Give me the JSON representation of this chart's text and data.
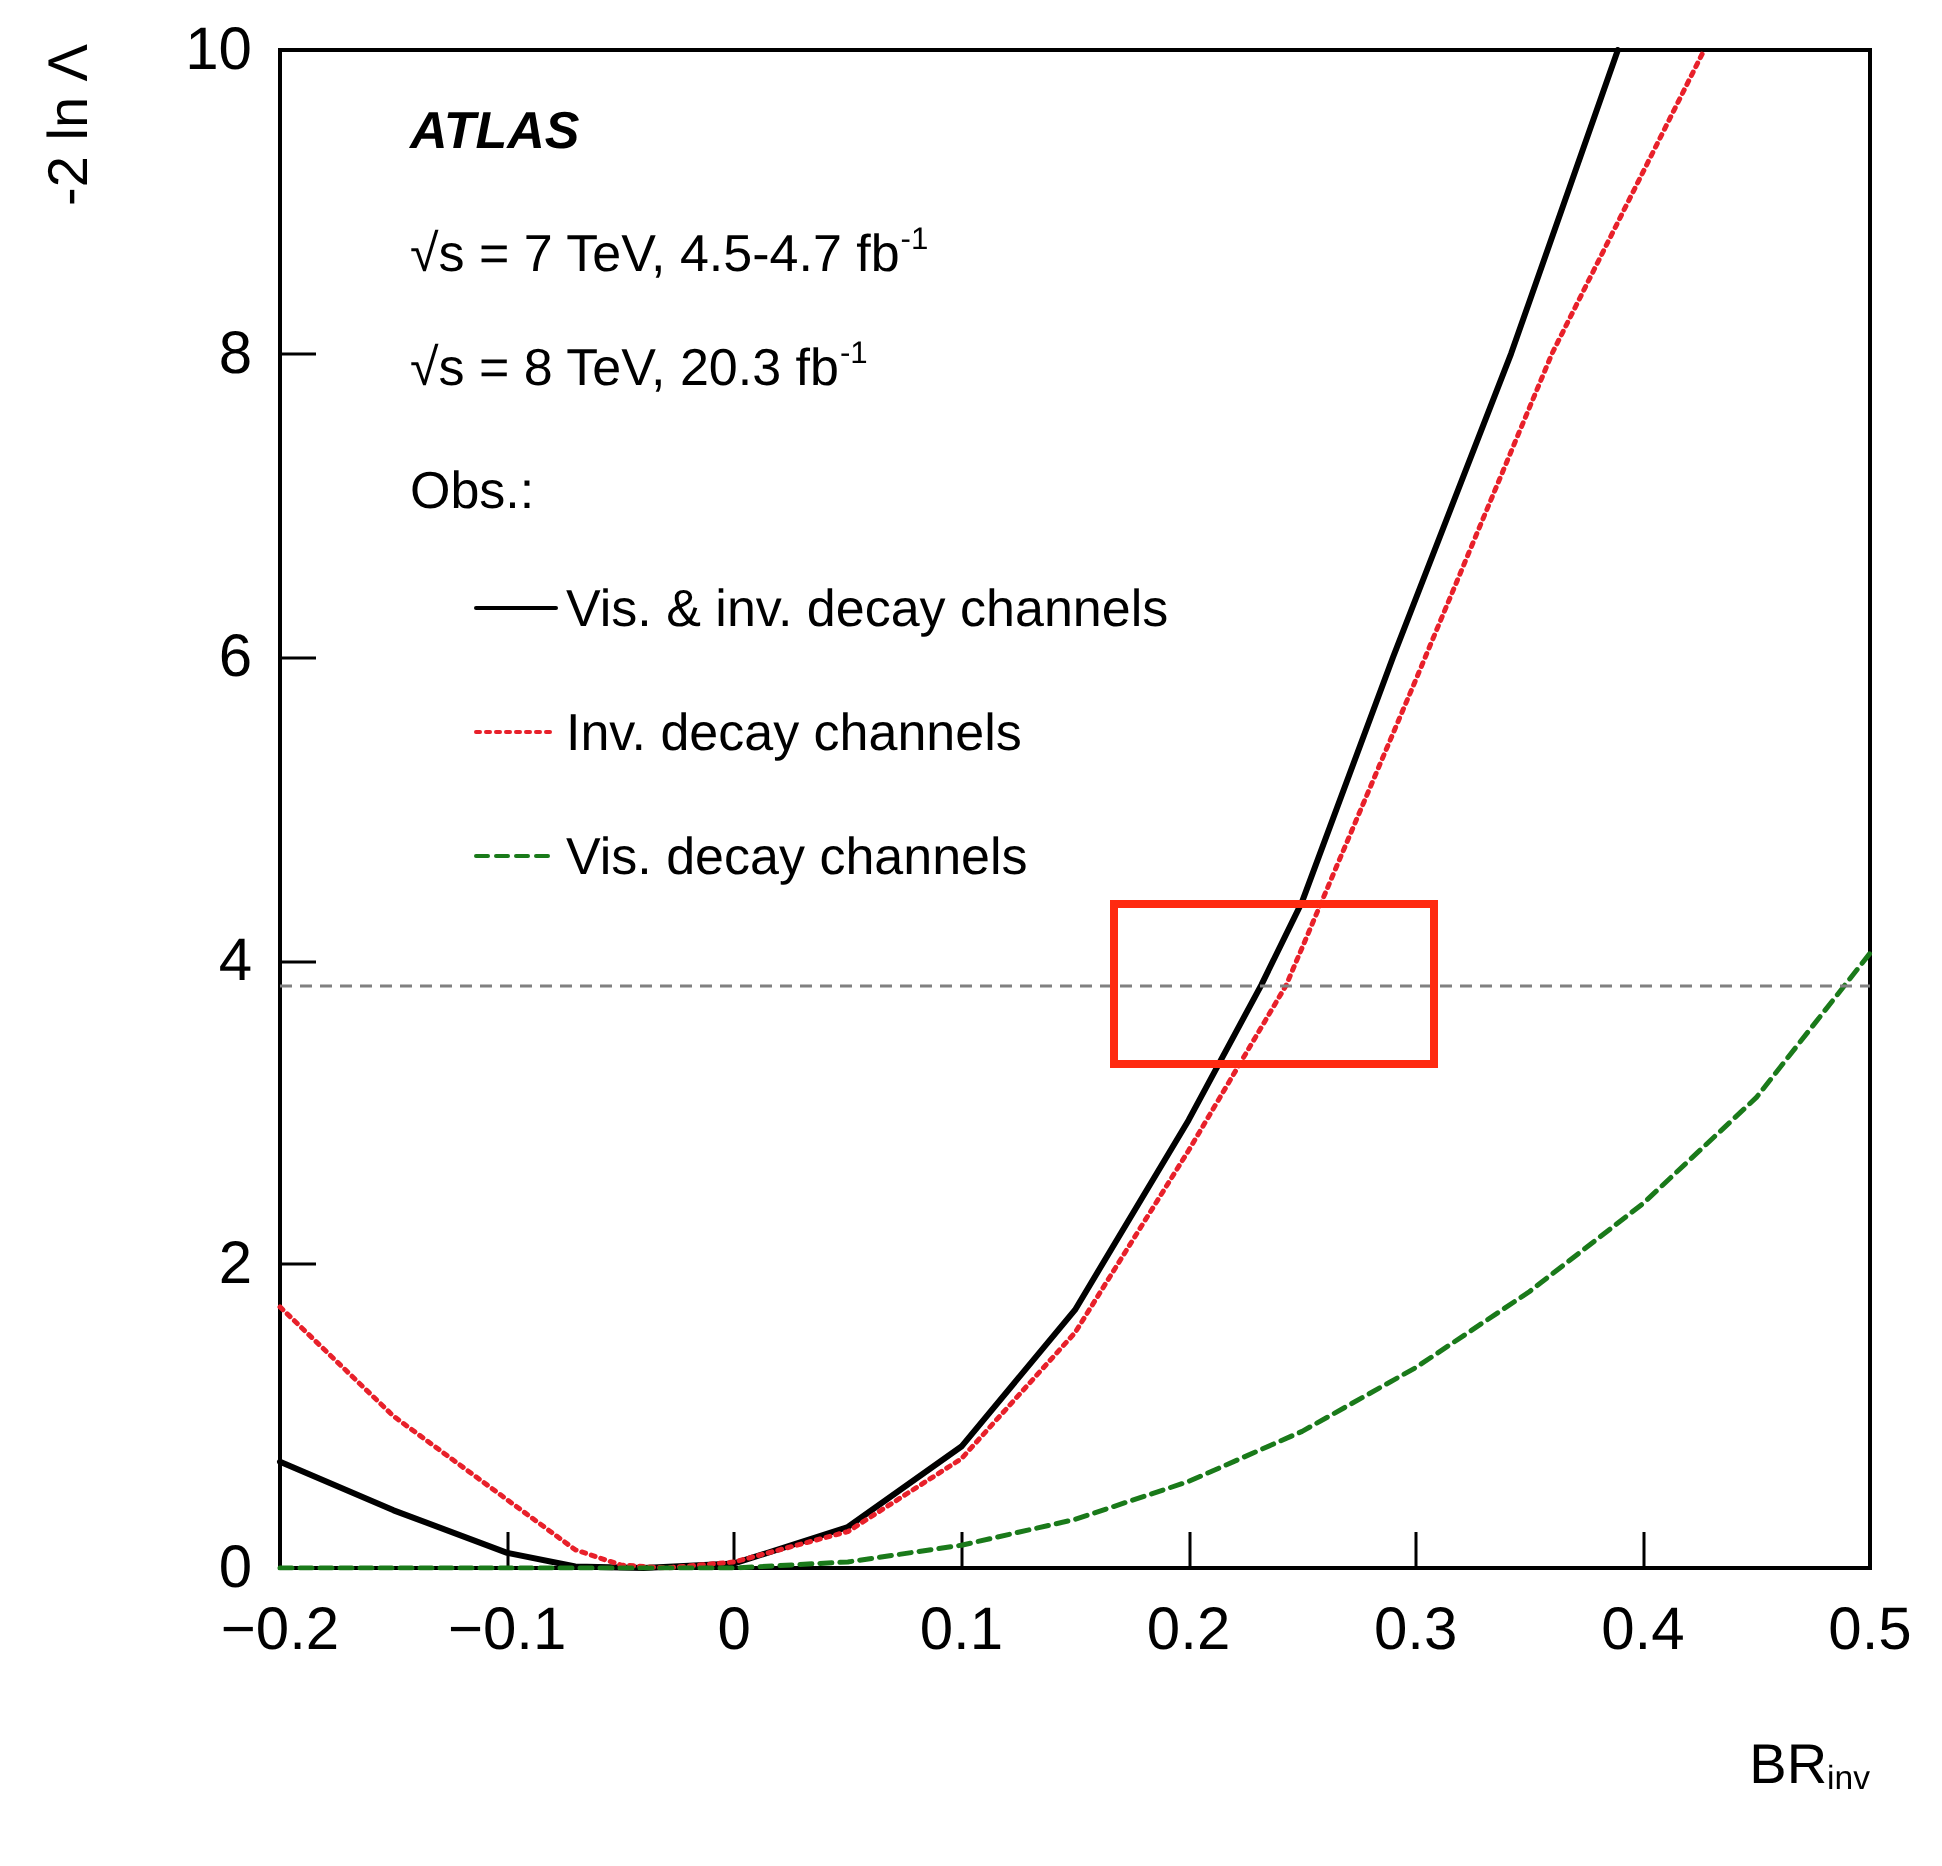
{
  "chart_data": {
    "type": "line",
    "xlabel": "BR$_{inv}$",
    "ylabel": "-2 ln Λ",
    "legend_title": "Obs.:",
    "annotations": [
      "ATLAS",
      "√s = 7 TeV, 4.5-4.7 fb$^{-1}$",
      "√s = 8 TeV, 20.3 fb$^{-1}$"
    ],
    "xlim": [
      -0.2,
      0.5
    ],
    "ylim": [
      0,
      10
    ],
    "xticks": [
      {
        "value": -0.2,
        "label": "−0.2"
      },
      {
        "value": -0.1,
        "label": "−0.1"
      },
      0,
      0.1,
      0.2,
      0.3,
      0.4,
      0.5
    ],
    "yticks": [
      0,
      2,
      4,
      6,
      8,
      10
    ],
    "grid": false,
    "legend": "top left",
    "marker": "none",
    "ref_lines": [
      {
        "axis": "y",
        "value": 3.84,
        "color": "#808080",
        "line_style": "dashed"
      }
    ],
    "series": [
      {
        "name": "Vis. & inv. decay channels",
        "color": "#000000",
        "line_style": "solid",
        "x": [
          -0.2,
          -0.15,
          -0.1,
          -0.07,
          -0.04,
          0,
          0.05,
          0.1,
          0.15,
          0.2,
          0.232,
          0.25,
          0.29,
          0.342,
          0.389
        ],
        "values": [
          0.7,
          0.38,
          0.1,
          0.01,
          0,
          0.03,
          0.27,
          0.8,
          1.7,
          2.95,
          3.84,
          4.39,
          6.0,
          8.0,
          10
        ]
      },
      {
        "name": "Inv. decay channels",
        "color": "#e8202a",
        "line_style": "dotted",
        "x": [
          -0.2,
          -0.15,
          -0.1,
          -0.07,
          -0.05,
          -0.03,
          0,
          0.05,
          0.1,
          0.15,
          0.2,
          0.243,
          0.3,
          0.36,
          0.427
        ],
        "values": [
          1.72,
          1.0,
          0.45,
          0.12,
          0.02,
          0,
          0.04,
          0.24,
          0.72,
          1.55,
          2.75,
          3.84,
          5.85,
          8.0,
          10
        ]
      },
      {
        "name": "Vis. decay channels",
        "color": "#1a7a1a",
        "line_style": "dashed",
        "x": [
          -0.2,
          -0.1,
          0,
          0.05,
          0.1,
          0.15,
          0.2,
          0.25,
          0.3,
          0.35,
          0.4,
          0.45,
          0.5
        ],
        "values": [
          0,
          0,
          0,
          0.04,
          0.15,
          0.32,
          0.57,
          0.9,
          1.32,
          1.82,
          2.4,
          3.1,
          4.05
        ]
      }
    ]
  }
}
